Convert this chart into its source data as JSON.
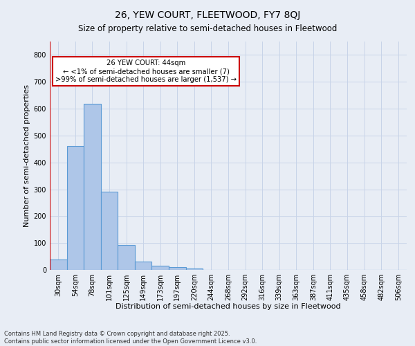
{
  "title": "26, YEW COURT, FLEETWOOD, FY7 8QJ",
  "subtitle": "Size of property relative to semi-detached houses in Fleetwood",
  "xlabel": "Distribution of semi-detached houses by size in Fleetwood",
  "ylabel": "Number of semi-detached properties",
  "categories": [
    "30sqm",
    "54sqm",
    "78sqm",
    "101sqm",
    "125sqm",
    "149sqm",
    "173sqm",
    "197sqm",
    "220sqm",
    "244sqm",
    "268sqm",
    "292sqm",
    "316sqm",
    "339sqm",
    "363sqm",
    "387sqm",
    "411sqm",
    "435sqm",
    "458sqm",
    "482sqm",
    "506sqm"
  ],
  "bar_values": [
    38,
    460,
    617,
    290,
    93,
    32,
    15,
    10,
    5,
    0,
    0,
    0,
    0,
    0,
    0,
    0,
    0,
    0,
    0,
    0,
    0
  ],
  "bar_color": "#aec6e8",
  "bar_edge_color": "#5b9bd5",
  "annotation_text": "26 YEW COURT: 44sqm\n← <1% of semi-detached houses are smaller (7)\n>99% of semi-detached houses are larger (1,537) →",
  "annotation_box_color": "#ffffff",
  "annotation_box_edge": "#cc0000",
  "vline_color": "#cc0000",
  "ylim": [
    0,
    850
  ],
  "yticks": [
    0,
    100,
    200,
    300,
    400,
    500,
    600,
    700,
    800
  ],
  "grid_color": "#c8d4e8",
  "background_color": "#e8edf5",
  "footer_text": "Contains HM Land Registry data © Crown copyright and database right 2025.\nContains public sector information licensed under the Open Government Licence v3.0.",
  "title_fontsize": 10,
  "subtitle_fontsize": 8.5,
  "xlabel_fontsize": 8,
  "ylabel_fontsize": 8,
  "tick_fontsize": 7,
  "footer_fontsize": 6
}
